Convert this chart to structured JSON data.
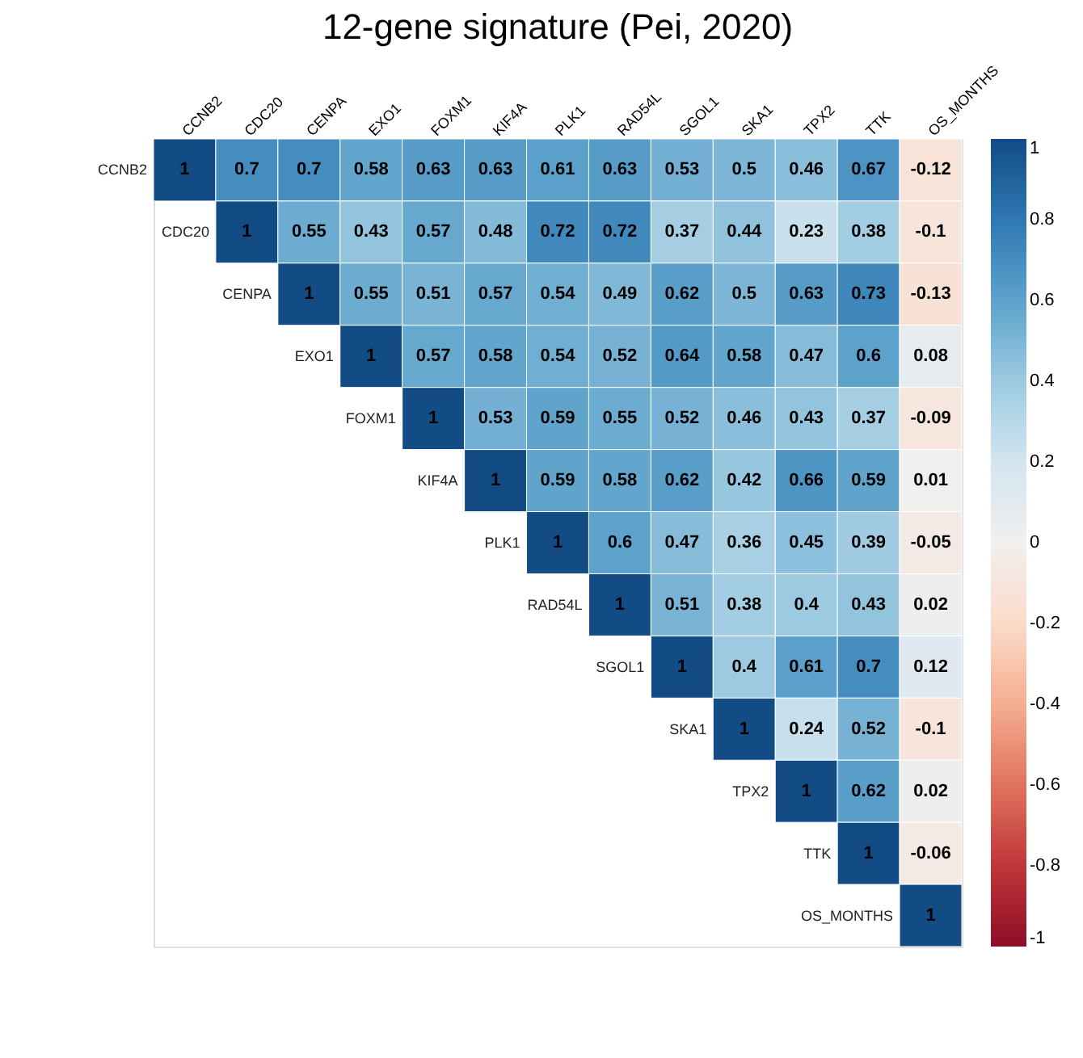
{
  "chart_data": {
    "type": "heatmap",
    "title": "12-gene signature (Pei, 2020)",
    "categories": [
      "CCNB2",
      "CDC20",
      "CENPA",
      "EXO1",
      "FOXM1",
      "KIF4A",
      "PLK1",
      "RAD54L",
      "SGOL1",
      "SKA1",
      "TPX2",
      "TTK",
      "OS_MONTHS"
    ],
    "y_categories": [
      "CCNB2",
      "CDC20",
      "CENPA",
      "EXO1",
      "FOXM1",
      "KIF4A",
      "PLK1",
      "RAD54L",
      "SGOL1",
      "SKA1",
      "TPX2",
      "TTK",
      "OS_MONTHS"
    ],
    "cells": [
      [
        1,
        0.7,
        0.7,
        0.58,
        0.63,
        0.63,
        0.61,
        0.63,
        0.53,
        0.5,
        0.46,
        0.67,
        -0.12
      ],
      [
        null,
        1,
        0.55,
        0.43,
        0.57,
        0.48,
        0.72,
        0.72,
        0.37,
        0.44,
        0.23,
        0.38,
        -0.1
      ],
      [
        null,
        null,
        1,
        0.55,
        0.51,
        0.57,
        0.54,
        0.49,
        0.62,
        0.5,
        0.63,
        0.73,
        -0.13
      ],
      [
        null,
        null,
        null,
        1,
        0.57,
        0.58,
        0.54,
        0.52,
        0.64,
        0.58,
        0.47,
        0.6,
        0.08
      ],
      [
        null,
        null,
        null,
        null,
        1,
        0.53,
        0.59,
        0.55,
        0.52,
        0.46,
        0.43,
        0.37,
        -0.09
      ],
      [
        null,
        null,
        null,
        null,
        null,
        1,
        0.59,
        0.58,
        0.62,
        0.42,
        0.66,
        0.59,
        0.01
      ],
      [
        null,
        null,
        null,
        null,
        null,
        null,
        1,
        0.6,
        0.47,
        0.36,
        0.45,
        0.39,
        -0.05
      ],
      [
        null,
        null,
        null,
        null,
        null,
        null,
        null,
        1,
        0.51,
        0.38,
        0.4,
        0.43,
        0.02
      ],
      [
        null,
        null,
        null,
        null,
        null,
        null,
        null,
        null,
        1,
        0.4,
        0.61,
        0.7,
        0.12
      ],
      [
        null,
        null,
        null,
        null,
        null,
        null,
        null,
        null,
        null,
        1,
        0.24,
        0.52,
        -0.1
      ],
      [
        null,
        null,
        null,
        null,
        null,
        null,
        null,
        null,
        null,
        null,
        1,
        0.62,
        0.02
      ],
      [
        null,
        null,
        null,
        null,
        null,
        null,
        null,
        null,
        null,
        null,
        null,
        1,
        -0.06
      ],
      [
        null,
        null,
        null,
        null,
        null,
        null,
        null,
        null,
        null,
        null,
        null,
        null,
        1
      ]
    ],
    "clim": [
      -1,
      1
    ],
    "cticks": [
      -1,
      -0.8,
      -0.6,
      -0.4,
      -0.2,
      0,
      0.2,
      0.4,
      0.6,
      0.8,
      1
    ],
    "data_labels": true,
    "grid": false
  }
}
